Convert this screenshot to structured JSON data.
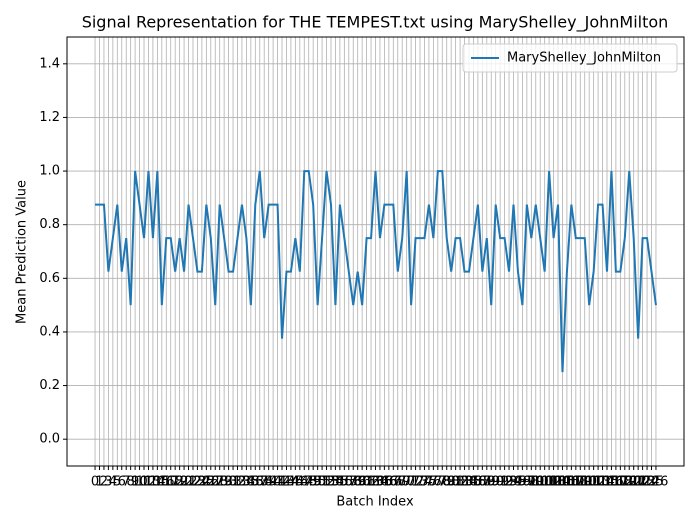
{
  "chart_data": {
    "type": "line",
    "title": "Signal Representation for THE TEMPEST.txt using MaryShelley_JohnMilton",
    "x_label": "Batch Index",
    "y_label": "Mean Prediction Value",
    "x": [
      0,
      1,
      2,
      3,
      4,
      5,
      6,
      7,
      8,
      9,
      10,
      11,
      12,
      13,
      14,
      15,
      16,
      17,
      18,
      19,
      20,
      21,
      22,
      23,
      24,
      25,
      26,
      27,
      28,
      29,
      30,
      31,
      32,
      33,
      34,
      35,
      36,
      37,
      38,
      39,
      40,
      41,
      42,
      43,
      44,
      45,
      46,
      47,
      48,
      49,
      50,
      51,
      52,
      53,
      54,
      55,
      56,
      57,
      58,
      59,
      60,
      61,
      62,
      63,
      64,
      65,
      66,
      67,
      68,
      69,
      70,
      71,
      72,
      73,
      74,
      75,
      76,
      77,
      78,
      79,
      80,
      81,
      82,
      83,
      84,
      85,
      86,
      87,
      88,
      89,
      90,
      91,
      92,
      93,
      94,
      95,
      96,
      97,
      98,
      99,
      100,
      101,
      102,
      103,
      104,
      105,
      106,
      107,
      108,
      109,
      110,
      111,
      112,
      113,
      114,
      115,
      116,
      117,
      118,
      119,
      120,
      121,
      122,
      123,
      124,
      125,
      126
    ],
    "series": [
      {
        "name": "MaryShelley_JohnMilton",
        "color": "#1f77b4",
        "values": [
          0.875,
          0.875,
          0.875,
          0.625,
          0.75,
          0.875,
          0.625,
          0.75,
          0.5,
          1.0,
          0.875,
          0.75,
          1.0,
          0.75,
          1.0,
          0.5,
          0.75,
          0.75,
          0.625,
          0.75,
          0.625,
          0.875,
          0.75,
          0.625,
          0.625,
          0.875,
          0.75,
          0.5,
          0.875,
          0.75,
          0.625,
          0.625,
          0.75,
          0.875,
          0.75,
          0.5,
          0.875,
          1.0,
          0.75,
          0.875,
          0.875,
          0.875,
          0.375,
          0.625,
          0.625,
          0.75,
          0.625,
          1.0,
          1.0,
          0.875,
          0.5,
          0.75,
          1.0,
          0.875,
          0.5,
          0.875,
          0.75,
          0.625,
          0.5,
          0.625,
          0.5,
          0.75,
          0.75,
          1.0,
          0.75,
          0.875,
          0.875,
          0.875,
          0.625,
          0.75,
          1.0,
          0.5,
          0.75,
          0.75,
          0.75,
          0.875,
          0.75,
          1.0,
          1.0,
          0.75,
          0.625,
          0.75,
          0.75,
          0.625,
          0.625,
          0.75,
          0.875,
          0.625,
          0.75,
          0.5,
          0.875,
          0.75,
          0.75,
          0.625,
          0.875,
          0.625,
          0.5,
          0.875,
          0.75,
          0.875,
          0.75,
          0.625,
          1.0,
          0.75,
          0.875,
          0.25,
          0.625,
          0.875,
          0.75,
          0.75,
          0.75,
          0.5,
          0.625,
          0.875,
          0.875,
          0.625,
          1.0,
          0.625,
          0.625,
          0.75,
          1.0,
          0.75,
          0.375,
          0.75,
          0.75,
          0.625,
          0.5
        ]
      }
    ],
    "xlim": [
      -6.3,
      132.3
    ],
    "xticks": [
      0,
      1,
      2,
      3,
      4,
      5,
      6,
      7,
      8,
      9,
      10,
      11,
      12,
      13,
      14,
      15,
      16,
      17,
      18,
      19,
      20,
      21,
      22,
      23,
      24,
      25,
      26,
      27,
      28,
      29,
      30,
      31,
      32,
      33,
      34,
      35,
      36,
      37,
      38,
      39,
      40,
      41,
      42,
      43,
      44,
      45,
      46,
      47,
      48,
      49,
      50,
      51,
      52,
      53,
      54,
      55,
      56,
      57,
      58,
      59,
      60,
      61,
      62,
      63,
      64,
      65,
      66,
      67,
      68,
      69,
      70,
      71,
      72,
      73,
      74,
      75,
      76,
      77,
      78,
      79,
      80,
      81,
      82,
      83,
      84,
      85,
      86,
      87,
      88,
      89,
      90,
      91,
      92,
      93,
      94,
      95,
      96,
      97,
      98,
      99,
      100,
      101,
      102,
      103,
      104,
      105,
      106,
      107,
      108,
      109,
      110,
      111,
      112,
      113,
      114,
      115,
      116,
      117,
      118,
      119,
      120,
      121,
      122,
      123,
      124,
      125,
      126
    ],
    "ylim": [
      -0.1,
      1.5
    ],
    "yticks": [
      {
        "value": 0,
        "label": "0.0"
      },
      {
        "value": 0.2,
        "label": "0.2"
      },
      {
        "value": 0.4,
        "label": "0.4"
      },
      {
        "value": 0.6,
        "label": "0.6"
      },
      {
        "value": 0.8,
        "label": "0.8"
      },
      {
        "value": 1,
        "label": "1.0"
      },
      {
        "value": 1.2,
        "label": "1.2"
      },
      {
        "value": 1.4,
        "label": "1.4"
      }
    ],
    "grid": true,
    "legend": "upper right"
  }
}
